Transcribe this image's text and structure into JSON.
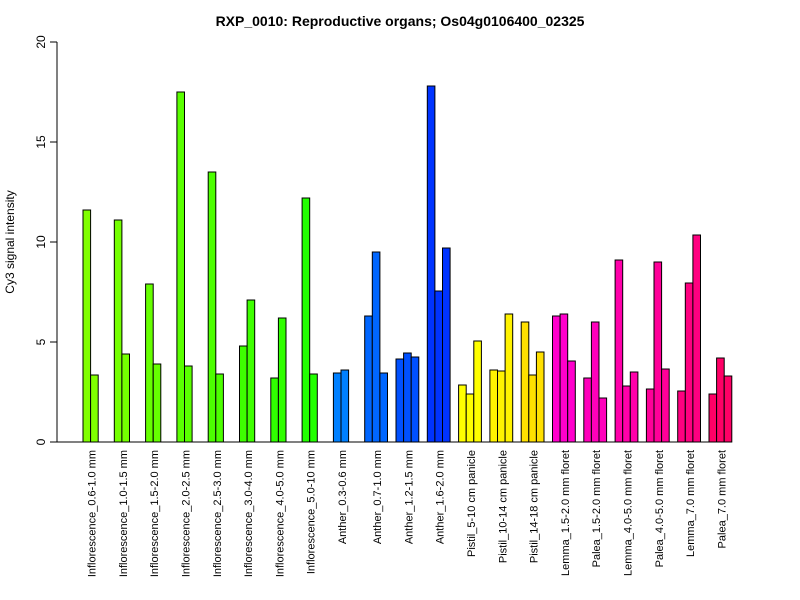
{
  "chart_data": {
    "type": "bar",
    "title": "RXP_0010: Reproductive organs; Os04g0106400_02325",
    "xlabel": "",
    "ylabel": "Cy3 signal intensity",
    "ylim": [
      0,
      20
    ],
    "yticks": [
      0,
      5,
      10,
      15,
      20
    ],
    "grid": false,
    "legend": "none",
    "groups": [
      {
        "label": "Inflorescence_0.6-1.0 mm",
        "color": "#80FF00",
        "values": [
          11.6,
          3.35
        ]
      },
      {
        "label": "Inflorescence_1.0-1.5 mm",
        "color": "#74FF00",
        "values": [
          11.1,
          4.4
        ]
      },
      {
        "label": "Inflorescence_1.5-2.0 mm",
        "color": "#66FF00",
        "values": [
          7.9,
          3.9
        ]
      },
      {
        "label": "Inflorescence_2.0-2.5 mm",
        "color": "#5AFF00",
        "values": [
          17.5,
          3.8
        ]
      },
      {
        "label": "Inflorescence_2.5-3.0 mm",
        "color": "#4CFF00",
        "values": [
          13.5,
          3.4
        ]
      },
      {
        "label": "Inflorescence_3.0-4.0 mm",
        "color": "#3EFF00",
        "values": [
          4.8,
          7.1
        ]
      },
      {
        "label": "Inflorescence_4.0-5.0 mm",
        "color": "#30FF00",
        "values": [
          3.2,
          6.2
        ]
      },
      {
        "label": "Inflorescence_5.0-10 mm",
        "color": "#22FF00",
        "values": [
          12.2,
          3.4
        ]
      },
      {
        "label": "Anther_0.3-0.6 mm",
        "color": "#0080FF",
        "values": [
          3.45,
          3.6
        ]
      },
      {
        "label": "Anther_0.7-1.0 mm",
        "color": "#0066FF",
        "values": [
          6.3,
          9.5,
          3.45
        ]
      },
      {
        "label": "Anther_1.2-1.5 mm",
        "color": "#0050FF",
        "values": [
          4.15,
          4.45,
          4.25
        ]
      },
      {
        "label": "Anther_1.6-2.0 mm",
        "color": "#0033FF",
        "values": [
          17.8,
          7.55,
          9.7
        ]
      },
      {
        "label": "Pistil_5-10 cm panicle",
        "color": "#FFFF00",
        "values": [
          2.85,
          2.4,
          5.05
        ]
      },
      {
        "label": "Pistil_10-14 cm panicle",
        "color": "#FFF200",
        "values": [
          3.6,
          3.55,
          6.4
        ]
      },
      {
        "label": "Pistil_14-18 cm panicle",
        "color": "#FFE000",
        "values": [
          6.0,
          3.35,
          4.5
        ]
      },
      {
        "label": "Lemma_1.5-2.0 mm floret",
        "color": "#FF00CC",
        "values": [
          6.3,
          6.4,
          4.05
        ]
      },
      {
        "label": "Palea_1.5-2.0 mm floret",
        "color": "#FF00BB",
        "values": [
          3.2,
          6.0,
          2.2
        ]
      },
      {
        "label": "Lemma_4.0-5.0 mm floret",
        "color": "#FF00AA",
        "values": [
          9.1,
          2.8,
          3.5
        ]
      },
      {
        "label": "Palea_4.0-5.0 mm floret",
        "color": "#FF0099",
        "values": [
          2.65,
          9.0,
          3.65
        ]
      },
      {
        "label": "Lemma_7.0 mm floret",
        "color": "#FF0080",
        "values": [
          2.55,
          7.95,
          10.35
        ]
      },
      {
        "label": "Palea_7.0 mm floret",
        "color": "#FF0066",
        "values": [
          2.4,
          4.2,
          3.3
        ]
      }
    ]
  }
}
